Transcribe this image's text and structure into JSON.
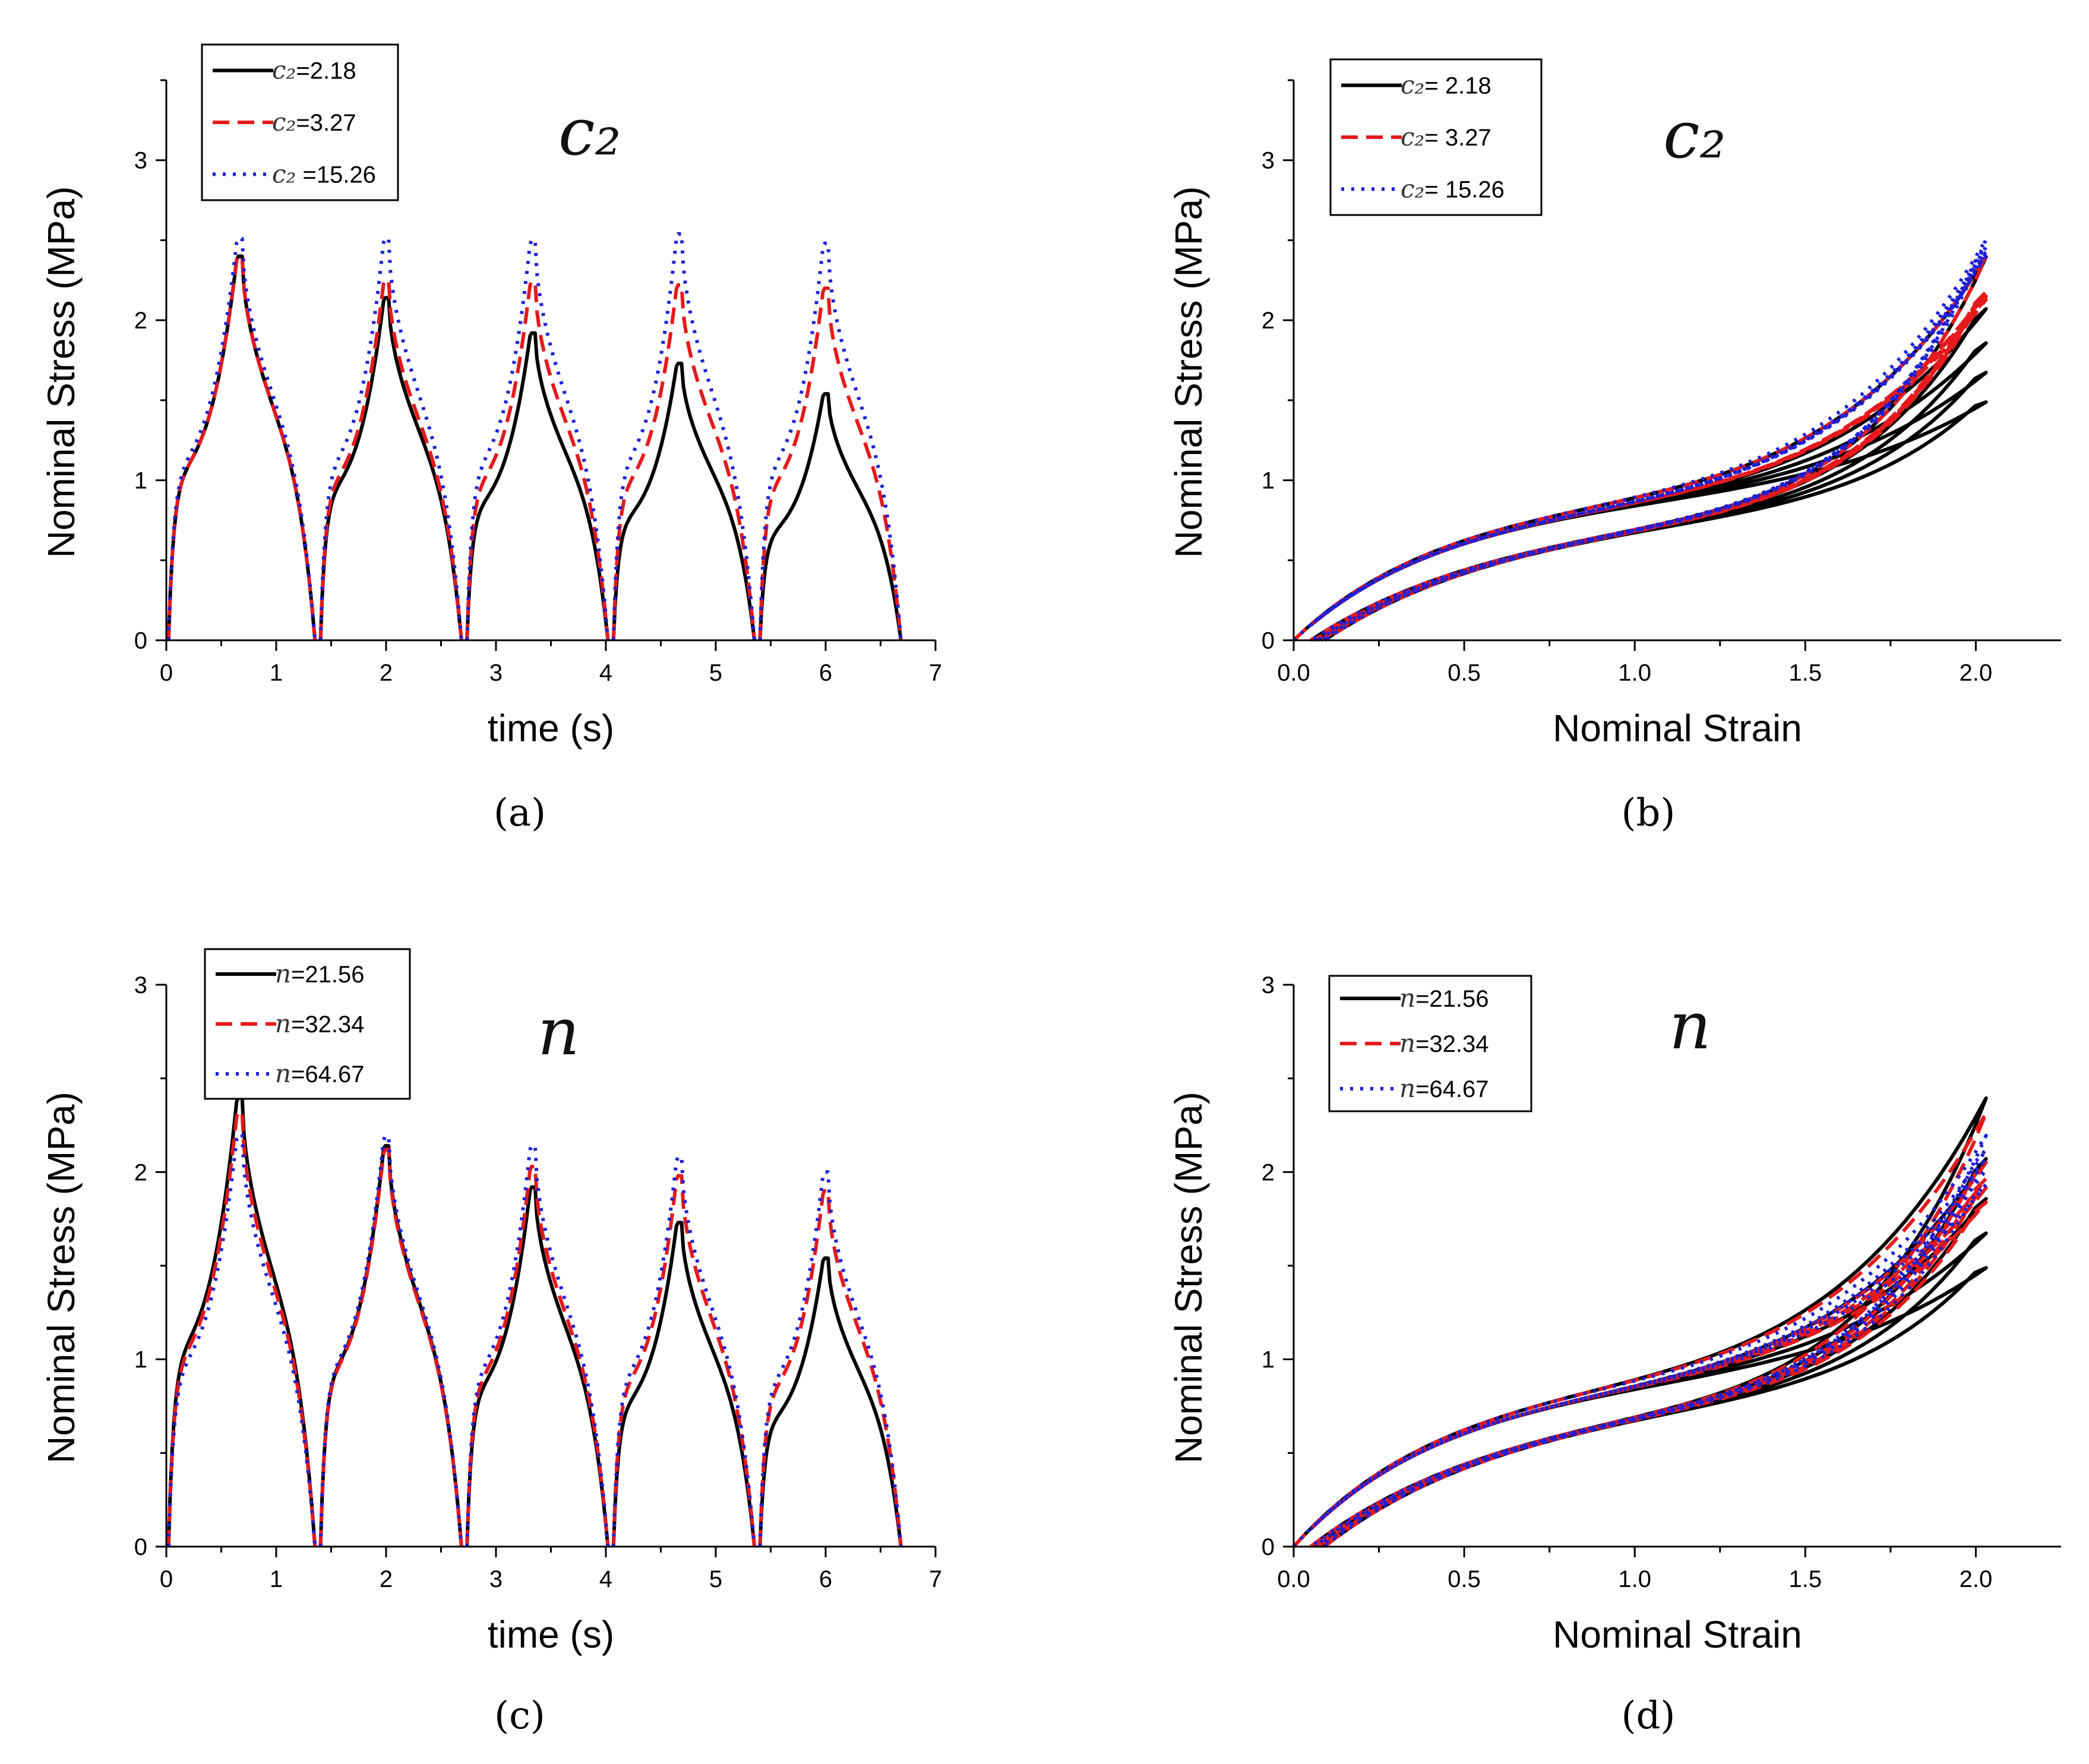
{
  "chart_data": [
    {
      "id": "a",
      "type": "line",
      "panel_label": "(a)",
      "parameter_label": "c₂",
      "xlabel": "time (s)",
      "ylabel": "Nominal Stress (MPa)",
      "xlim": [
        0,
        7
      ],
      "ylim": [
        0,
        3.5
      ],
      "xticks": [
        "0",
        "1",
        "2",
        "3",
        "4",
        "5",
        "6",
        "7"
      ],
      "yticks": [
        "0",
        "1",
        "2",
        "3"
      ],
      "cycle_period_s": 1.333,
      "series": [
        {
          "name": "c2=2.18",
          "symbol": "c₂",
          "value_text": "=2.18",
          "color": "#000000",
          "style": "solid",
          "peaks": [
            2.4,
            2.14,
            1.92,
            1.73,
            1.54
          ]
        },
        {
          "name": "c2=3.27",
          "symbol": "c₂",
          "value_text": "=3.27",
          "color": "#e41a1c",
          "style": "dashed",
          "peaks": [
            2.4,
            2.25,
            2.24,
            2.22,
            2.2
          ]
        },
        {
          "name": "c2=15.26",
          "symbol": "c₂",
          "value_text": " =15.26",
          "color": "#1f1fd6",
          "style": "dotted",
          "peaks": [
            2.51,
            2.51,
            2.5,
            2.54,
            2.48
          ]
        }
      ]
    },
    {
      "id": "b",
      "type": "line",
      "panel_label": "(b)",
      "parameter_label": "c₂",
      "xlabel": "Nominal Strain",
      "ylabel": "Nominal Stress (MPa)",
      "xlim": [
        0,
        2.25
      ],
      "ylim": [
        0,
        3.5
      ],
      "xticks": [
        "0.0",
        "0.5",
        "1.0",
        "1.5",
        "2.0"
      ],
      "yticks": [
        "0",
        "1",
        "2",
        "3"
      ],
      "max_strain": 2.03,
      "series": [
        {
          "name": "c2= 2.18",
          "symbol": "c₂",
          "value_text": "= 2.18",
          "color": "#000000",
          "style": "solid",
          "peaks": [
            2.4,
            2.14,
            1.92,
            1.73,
            1.54
          ]
        },
        {
          "name": "c2= 3.27",
          "symbol": "c₂",
          "value_text": "= 3.27",
          "color": "#e41a1c",
          "style": "dashed",
          "peaks": [
            2.4,
            2.25,
            2.24,
            2.22,
            2.2
          ]
        },
        {
          "name": "c2= 15.26",
          "symbol": "c₂",
          "value_text": "= 15.26",
          "color": "#1f1fd6",
          "style": "dotted",
          "peaks": [
            2.51,
            2.51,
            2.5,
            2.54,
            2.48
          ]
        }
      ]
    },
    {
      "id": "c",
      "type": "line",
      "panel_label": "(c)",
      "parameter_label": "n",
      "xlabel": "time (s)",
      "ylabel": "Nominal Stress (MPa)",
      "xlim": [
        0,
        7
      ],
      "ylim": [
        0,
        3
      ],
      "xticks": [
        "0",
        "1",
        "2",
        "3",
        "4",
        "5",
        "6",
        "7"
      ],
      "yticks": [
        "0",
        "1",
        "2",
        "3"
      ],
      "cycle_period_s": 1.333,
      "series": [
        {
          "name": "n=21.56",
          "symbol": "n",
          "value_text": "=21.56",
          "color": "#000000",
          "style": "solid",
          "peaks": [
            2.4,
            2.14,
            1.92,
            1.73,
            1.54
          ]
        },
        {
          "name": "n=32.34",
          "symbol": "n",
          "value_text": "=32.34",
          "color": "#e41a1c",
          "style": "dashed",
          "peaks": [
            2.32,
            2.12,
            2.03,
            1.98,
            1.9
          ]
        },
        {
          "name": "n=64.67",
          "symbol": "n",
          "value_text": "=64.67",
          "color": "#1f1fd6",
          "style": "dotted",
          "peaks": [
            2.2,
            2.19,
            2.14,
            2.08,
            2.0
          ]
        }
      ]
    },
    {
      "id": "d",
      "type": "line",
      "panel_label": "(d)",
      "parameter_label": "n",
      "xlabel": "Nominal Strain",
      "ylabel": "Nominal Stress (MPa)",
      "xlim": [
        0,
        2.25
      ],
      "ylim": [
        0,
        3
      ],
      "xticks": [
        "0.0",
        "0.5",
        "1.0",
        "1.5",
        "2.0"
      ],
      "yticks": [
        "0",
        "1",
        "2",
        "3"
      ],
      "max_strain": 2.03,
      "series": [
        {
          "name": "n=21.56",
          "symbol": "n",
          "value_text": "=21.56",
          "color": "#000000",
          "style": "solid",
          "peaks": [
            2.4,
            2.14,
            1.92,
            1.73,
            1.54
          ]
        },
        {
          "name": "n=32.34",
          "symbol": "n",
          "value_text": "=32.34",
          "color": "#e41a1c",
          "style": "dashed",
          "peaks": [
            2.32,
            2.12,
            2.03,
            1.98,
            1.9
          ]
        },
        {
          "name": "n=64.67",
          "symbol": "n",
          "value_text": "=64.67",
          "color": "#1f1fd6",
          "style": "dotted",
          "peaks": [
            2.2,
            2.19,
            2.14,
            2.08,
            2.0
          ]
        }
      ]
    }
  ]
}
